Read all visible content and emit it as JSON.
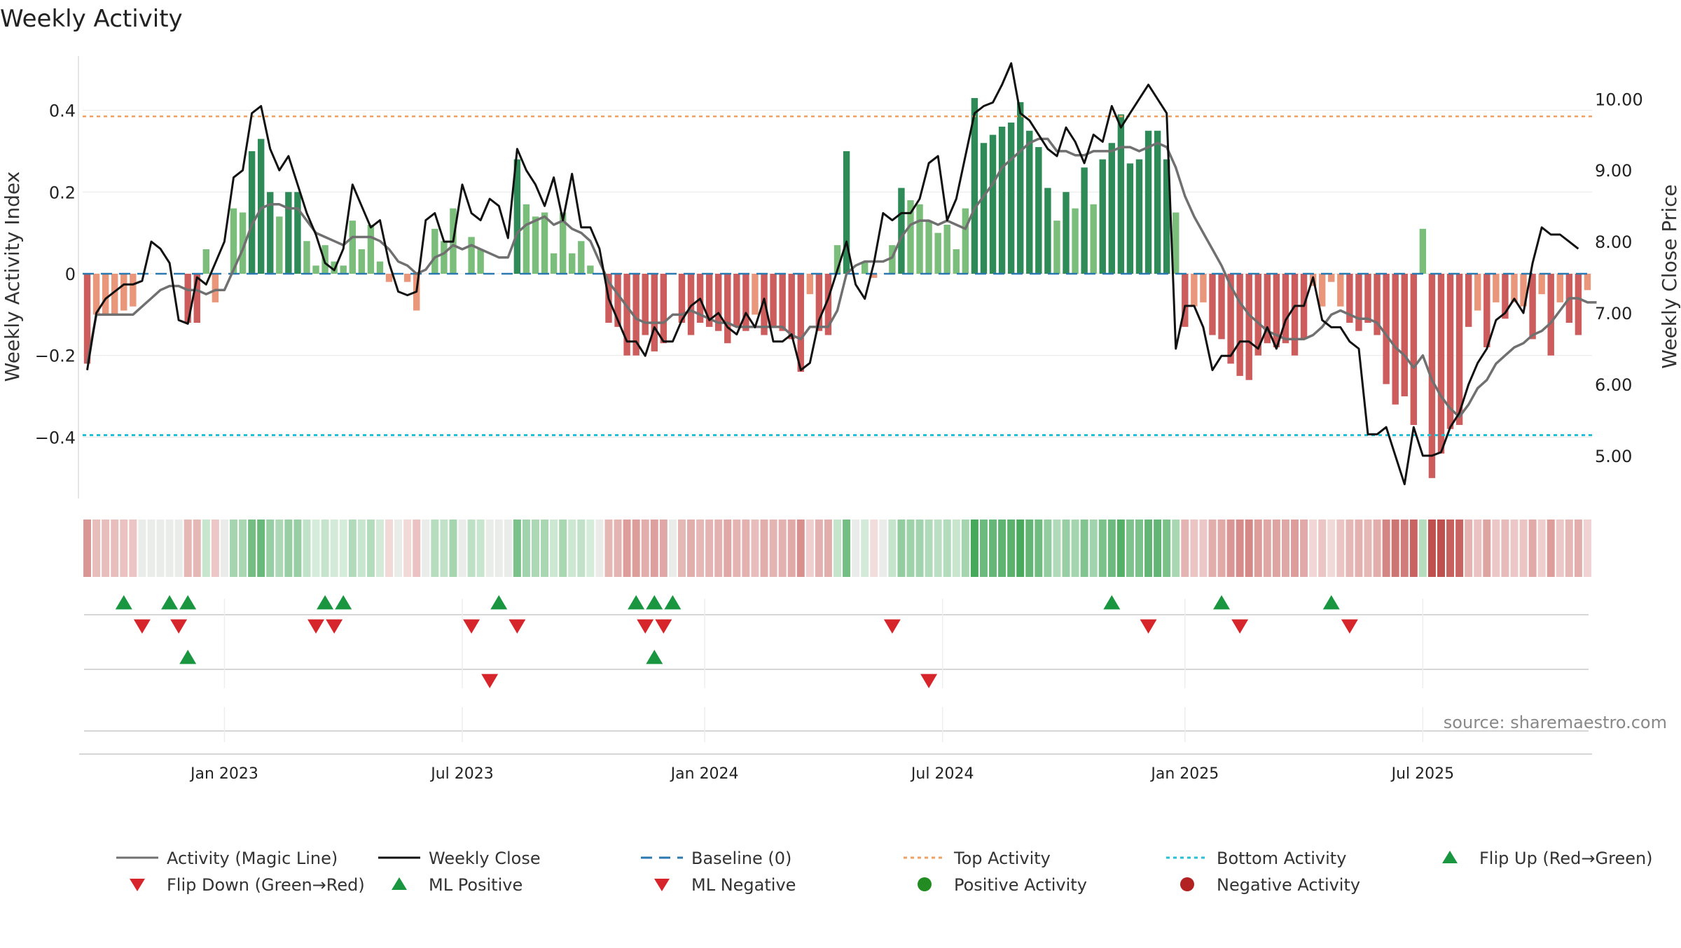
{
  "chart_data": {
    "type": "bar",
    "title": "Weekly Activity",
    "ylabel": "Weekly Activity Index",
    "y2label": "Weekly Close Price",
    "source": "source: sharemaestro.com",
    "ylim": [
      -0.55,
      0.55
    ],
    "y2lim": [
      4.4,
      10.7
    ],
    "yticks": [
      {
        "v": 0.4,
        "label": "0.4"
      },
      {
        "v": 0.2,
        "label": "0.2"
      },
      {
        "v": 0,
        "label": "0"
      },
      {
        "v": -0.2,
        "label": "−0.2"
      },
      {
        "v": -0.4,
        "label": "−0.4"
      }
    ],
    "y2ticks": [
      {
        "v": 10,
        "label": "10.00"
      },
      {
        "v": 9,
        "label": "9.00"
      },
      {
        "v": 8,
        "label": "8.00"
      },
      {
        "v": 7,
        "label": "7.00"
      },
      {
        "v": 6,
        "label": "6.00"
      },
      {
        "v": 5,
        "label": "5.00"
      }
    ],
    "xticks": [
      {
        "i": 15,
        "label": "Jan 2023"
      },
      {
        "i": 41,
        "label": "Jul 2023"
      },
      {
        "i": 67.5,
        "label": "Jan 2024"
      },
      {
        "i": 93.5,
        "label": "Jul 2024"
      },
      {
        "i": 120,
        "label": "Jan 2025"
      },
      {
        "i": 146,
        "label": "Jul 2025"
      }
    ],
    "top_activity": 0.385,
    "bottom_activity": -0.395,
    "activity": [
      -0.22,
      -0.1,
      -0.1,
      -0.1,
      -0.09,
      -0.08,
      0,
      0,
      0,
      0,
      0,
      -0.12,
      -0.12,
      0.06,
      -0.07,
      0.0,
      0.16,
      0.15,
      0.3,
      0.33,
      0.2,
      0.14,
      0.2,
      0.2,
      0.08,
      0.02,
      0.07,
      0.03,
      0.02,
      0.13,
      0.06,
      0.12,
      0.03,
      -0.02,
      0,
      -0.02,
      -0.09,
      0,
      0.11,
      0.08,
      0.16,
      0,
      0.09,
      0.06,
      0,
      0,
      0,
      0.28,
      0.17,
      0.14,
      0.15,
      0.05,
      0.15,
      0.05,
      0.08,
      0.02,
      0,
      -0.12,
      -0.13,
      -0.2,
      -0.2,
      -0.15,
      -0.19,
      -0.17,
      0,
      -0.12,
      -0.15,
      -0.12,
      -0.13,
      -0.14,
      -0.17,
      -0.13,
      -0.14,
      -0.1,
      -0.15,
      -0.13,
      -0.14,
      -0.16,
      -0.24,
      -0.05,
      -0.14,
      -0.15,
      0.07,
      0.3,
      0,
      0.03,
      -0.01,
      0,
      0.07,
      0.21,
      0.18,
      0.17,
      0.13,
      0.1,
      0.12,
      0.06,
      0.16,
      0.43,
      0.32,
      0.34,
      0.36,
      0.37,
      0.42,
      0.35,
      0.31,
      0.21,
      0.13,
      0.2,
      0.16,
      0.26,
      0.17,
      0.28,
      0.32,
      0.39,
      0.27,
      0.28,
      0.35,
      0.35,
      0.28,
      0.15,
      -0.13,
      -0.08,
      -0.07,
      -0.15,
      -0.16,
      -0.22,
      -0.25,
      -0.26,
      -0.2,
      -0.17,
      -0.18,
      -0.17,
      -0.2,
      -0.16,
      -0.03,
      -0.08,
      -0.02,
      -0.08,
      -0.12,
      -0.14,
      -0.12,
      -0.15,
      -0.27,
      -0.32,
      -0.3,
      -0.37,
      0.11,
      -0.5,
      -0.44,
      -0.38,
      -0.37,
      -0.13,
      -0.09,
      -0.18,
      -0.07,
      -0.11,
      -0.07,
      -0.08,
      -0.16,
      -0.05,
      -0.2,
      -0.07,
      -0.12,
      -0.15,
      -0.04
    ],
    "magic_line": [
      -0.22,
      -0.1,
      -0.1,
      -0.1,
      -0.1,
      -0.1,
      -0.08,
      -0.06,
      -0.04,
      -0.03,
      -0.03,
      -0.04,
      -0.04,
      -0.05,
      -0.04,
      -0.04,
      0.01,
      0.06,
      0.12,
      0.16,
      0.17,
      0.17,
      0.16,
      0.16,
      0.13,
      0.1,
      0.09,
      0.08,
      0.07,
      0.09,
      0.09,
      0.09,
      0.08,
      0.06,
      0.03,
      0.02,
      -0.0,
      0.01,
      0.04,
      0.05,
      0.07,
      0.06,
      0.07,
      0.06,
      0.05,
      0.04,
      0.04,
      0.1,
      0.12,
      0.13,
      0.14,
      0.12,
      0.13,
      0.11,
      0.1,
      0.08,
      0.03,
      -0.02,
      -0.05,
      -0.08,
      -0.11,
      -0.12,
      -0.12,
      -0.12,
      -0.1,
      -0.1,
      -0.09,
      -0.1,
      -0.11,
      -0.12,
      -0.12,
      -0.13,
      -0.13,
      -0.13,
      -0.13,
      -0.13,
      -0.13,
      -0.15,
      -0.16,
      -0.13,
      -0.13,
      -0.13,
      -0.09,
      0.0,
      0.02,
      0.03,
      0.03,
      0.03,
      0.04,
      0.09,
      0.12,
      0.13,
      0.13,
      0.12,
      0.13,
      0.12,
      0.11,
      0.16,
      0.19,
      0.22,
      0.26,
      0.28,
      0.3,
      0.32,
      0.33,
      0.33,
      0.3,
      0.3,
      0.29,
      0.29,
      0.3,
      0.3,
      0.3,
      0.31,
      0.31,
      0.3,
      0.31,
      0.32,
      0.31,
      0.26,
      0.19,
      0.14,
      0.1,
      0.06,
      0.02,
      -0.03,
      -0.07,
      -0.1,
      -0.12,
      -0.14,
      -0.15,
      -0.16,
      -0.16,
      -0.16,
      -0.15,
      -0.13,
      -0.1,
      -0.09,
      -0.1,
      -0.11,
      -0.11,
      -0.12,
      -0.15,
      -0.18,
      -0.2,
      -0.23,
      -0.2,
      -0.26,
      -0.3,
      -0.33,
      -0.35,
      -0.32,
      -0.28,
      -0.26,
      -0.22,
      -0.2,
      -0.18,
      -0.17,
      -0.15,
      -0.14,
      -0.12,
      -0.09,
      -0.06,
      -0.06,
      -0.07,
      -0.07
    ],
    "weekly_close": [
      6.2,
      7.0,
      7.2,
      7.3,
      7.4,
      7.4,
      7.45,
      8.0,
      7.9,
      7.7,
      6.9,
      6.85,
      7.5,
      7.4,
      7.7,
      8.0,
      8.9,
      9.0,
      9.8,
      9.9,
      9.3,
      9.0,
      9.2,
      8.8,
      8.4,
      8.1,
      7.7,
      7.6,
      7.9,
      8.8,
      8.5,
      8.2,
      8.3,
      7.7,
      7.3,
      7.25,
      7.3,
      8.3,
      8.4,
      8.0,
      8.0,
      8.8,
      8.4,
      8.3,
      8.6,
      8.5,
      8.05,
      9.3,
      9.0,
      8.8,
      8.5,
      8.9,
      8.3,
      8.95,
      8.2,
      8.2,
      7.9,
      7.2,
      6.9,
      6.6,
      6.6,
      6.4,
      6.8,
      6.6,
      6.6,
      6.9,
      7.1,
      7.2,
      6.9,
      7.0,
      6.8,
      6.7,
      7.0,
      6.8,
      7.2,
      6.6,
      6.6,
      6.7,
      6.2,
      6.3,
      6.9,
      7.2,
      7.6,
      8.0,
      7.4,
      7.2,
      7.7,
      8.4,
      8.3,
      8.4,
      8.4,
      8.6,
      9.1,
      9.2,
      8.3,
      8.6,
      9.2,
      9.8,
      9.9,
      9.95,
      10.2,
      10.5,
      9.8,
      9.7,
      9.5,
      9.3,
      9.2,
      9.6,
      9.4,
      9.1,
      9.5,
      9.4,
      9.9,
      9.6,
      9.8,
      10.0,
      10.2,
      10.0,
      9.8,
      6.5,
      7.1,
      7.1,
      6.8,
      6.2,
      6.4,
      6.4,
      6.6,
      6.6,
      6.5,
      6.8,
      6.5,
      6.9,
      7.1,
      7.1,
      7.5,
      6.9,
      6.8,
      6.8,
      6.6,
      6.5,
      5.3,
      5.3,
      5.4,
      5.0,
      4.6,
      5.4,
      5.0,
      5.0,
      5.05,
      5.4,
      5.6,
      6.0,
      6.3,
      6.5,
      6.9,
      7.0,
      7.2,
      7.0,
      7.7,
      8.2,
      8.1,
      8.1,
      8.0,
      7.9
    ],
    "flip_up": [
      4,
      9,
      11,
      26,
      28,
      45,
      60,
      62,
      64,
      112,
      124,
      136
    ],
    "flip_down": [
      6,
      10,
      25,
      27,
      42,
      47,
      61,
      63,
      88,
      116,
      126,
      138
    ],
    "ml_positive": [
      11,
      62
    ],
    "ml_negative": [
      44,
      92
    ],
    "legend": [
      "Activity (Magic Line)",
      "Weekly Close",
      "Baseline (0)",
      "Top Activity",
      "Bottom Activity",
      "Flip Up (Red→Green)",
      "Flip Down (Green→Red)",
      "ML Positive",
      "ML Negative",
      "Positive Activity",
      "Negative Activity"
    ],
    "colors": {
      "pos_strong": "#2e8b57",
      "pos_light": "#7bbd7b",
      "neg_strong": "#cd5c5c",
      "neg_light": "#e9967a",
      "magic_line": "#707070",
      "weekly_close": "#111111",
      "baseline": "#2a78b0",
      "top_activity": "#f0a060",
      "bottom_activity": "#22c1d6",
      "marker_up": "#1a9641",
      "marker_down": "#d7262b",
      "dot_pos": "#228b22",
      "dot_neg": "#b22222"
    }
  }
}
